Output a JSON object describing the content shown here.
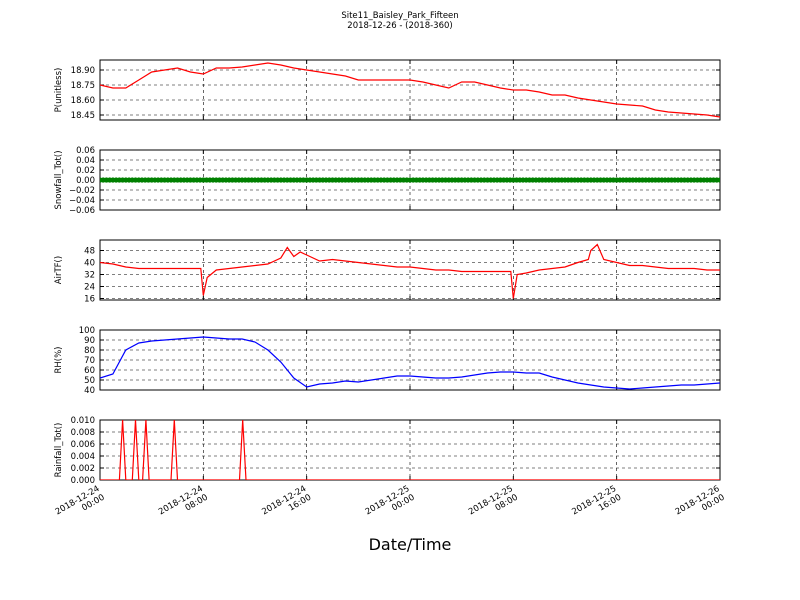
{
  "figure": {
    "title_line1": "Site11_Baisley_Park_Fifteen",
    "title_line2": "2018-12-26 - (2018-360)",
    "xlabel": "Date/Time",
    "x_tick_labels": [
      [
        "2018-12-24",
        "00:00"
      ],
      [
        "2018-12-24",
        "08:00"
      ],
      [
        "2018-12-24",
        "16:00"
      ],
      [
        "2018-12-25",
        "00:00"
      ],
      [
        "2018-12-25",
        "08:00"
      ],
      [
        "2018-12-25",
        "16:00"
      ],
      [
        "2018-12-26",
        "00:00"
      ]
    ]
  },
  "chart_data": [
    {
      "type": "line",
      "ylabel": "P(unitless)",
      "color": "#ff0000",
      "ylim": [
        18.4,
        19.0
      ],
      "yticks": [
        18.45,
        18.6,
        18.75,
        18.9
      ],
      "ytick_labels": [
        "18.45",
        "18.60",
        "18.75",
        "18.90"
      ],
      "x_hours": [
        0,
        1,
        2,
        3,
        4,
        5,
        6,
        7,
        8,
        9,
        10,
        11,
        12,
        13,
        14,
        15,
        16,
        17,
        18,
        19,
        20,
        21,
        22,
        23,
        24,
        25,
        26,
        27,
        28,
        29,
        30,
        31,
        32,
        33,
        34,
        35,
        36,
        37,
        38,
        39,
        40,
        41,
        42,
        43,
        44,
        45,
        46,
        47,
        48
      ],
      "values": [
        18.75,
        18.72,
        18.72,
        18.8,
        18.88,
        18.9,
        18.92,
        18.88,
        18.86,
        18.92,
        18.92,
        18.93,
        18.95,
        18.97,
        18.95,
        18.92,
        18.9,
        18.88,
        18.86,
        18.84,
        18.8,
        18.8,
        18.8,
        18.8,
        18.8,
        18.78,
        18.75,
        18.72,
        18.78,
        18.78,
        18.75,
        18.72,
        18.7,
        18.7,
        18.68,
        18.65,
        18.65,
        18.62,
        18.6,
        18.58,
        18.56,
        18.55,
        18.54,
        18.5,
        18.48,
        18.47,
        18.46,
        18.45,
        18.43
      ]
    },
    {
      "type": "scatter",
      "ylabel": "Snowfall_Tot()",
      "color": "#008000",
      "ylim": [
        -0.06,
        0.06
      ],
      "yticks": [
        -0.06,
        -0.04,
        -0.02,
        0.0,
        0.02,
        0.04,
        0.06
      ],
      "ytick_labels": [
        "−0.06",
        "−0.04",
        "−0.02",
        "0.00",
        "0.02",
        "0.04",
        "0.06"
      ],
      "x_range_hours": [
        0,
        48
      ],
      "constant_value": 0.0
    },
    {
      "type": "line",
      "ylabel": "AirTF()",
      "color": "#ff0000",
      "ylim": [
        15,
        55
      ],
      "yticks": [
        16,
        24,
        32,
        40,
        48
      ],
      "ytick_labels": [
        "16",
        "24",
        "32",
        "40",
        "48"
      ],
      "x_hours": [
        0,
        1,
        2,
        3,
        4,
        5,
        6,
        7,
        7.8,
        8.0,
        8.3,
        9,
        10,
        11,
        12,
        13,
        14,
        14.5,
        15,
        15.5,
        16,
        17,
        18,
        19,
        20,
        21,
        22,
        23,
        24,
        25,
        26,
        27,
        28,
        29,
        30,
        31,
        31.8,
        32.0,
        32.3,
        33,
        34,
        35,
        36,
        37,
        37.8,
        38.0,
        38.5,
        39,
        40,
        41,
        42,
        43,
        44,
        45,
        46,
        47,
        48
      ],
      "values": [
        40,
        39,
        37,
        36,
        36,
        36,
        36,
        36,
        36,
        18,
        30,
        35,
        36,
        37,
        38,
        39,
        43,
        50,
        44,
        47,
        45,
        41,
        42,
        41,
        40,
        39,
        38,
        37,
        37,
        36,
        35,
        35,
        34,
        34,
        34,
        34,
        34,
        16,
        32,
        33,
        35,
        36,
        37,
        40,
        42,
        48,
        52,
        42,
        40,
        38,
        38,
        37,
        36,
        36,
        36,
        35,
        35
      ]
    },
    {
      "type": "line",
      "ylabel": "RH(%)",
      "color": "#0000ff",
      "ylim": [
        40,
        100
      ],
      "yticks": [
        40,
        50,
        60,
        70,
        80,
        90,
        100
      ],
      "ytick_labels": [
        "40",
        "50",
        "60",
        "70",
        "80",
        "90",
        "100"
      ],
      "x_hours": [
        0,
        1,
        2,
        3,
        4,
        5,
        6,
        7,
        8,
        9,
        10,
        11,
        12,
        13,
        14,
        15,
        16,
        17,
        18,
        19,
        20,
        21,
        22,
        23,
        24,
        25,
        26,
        27,
        28,
        29,
        30,
        31,
        32,
        33,
        34,
        35,
        36,
        37,
        38,
        39,
        40,
        41,
        42,
        43,
        44,
        45,
        46,
        47,
        48
      ],
      "values": [
        52,
        56,
        80,
        87,
        89,
        90,
        91,
        92,
        93,
        92,
        91,
        91,
        88,
        80,
        68,
        52,
        43,
        46,
        47,
        49,
        48,
        50,
        52,
        54,
        54,
        53,
        52,
        52,
        53,
        55,
        57,
        58,
        58,
        57,
        57,
        53,
        50,
        47,
        45,
        43,
        42,
        41,
        42,
        43,
        44,
        45,
        45,
        46,
        47
      ]
    },
    {
      "type": "line",
      "ylabel": "Rainfall_Tot()",
      "color": "#ff0000",
      "ylim": [
        0,
        0.01
      ],
      "yticks": [
        0.0,
        0.002,
        0.004,
        0.006,
        0.008,
        0.01
      ],
      "ytick_labels": [
        "0.000",
        "0.002",
        "0.004",
        "0.006",
        "0.008",
        "0.010"
      ],
      "x_hours": [
        0,
        1.5,
        1.75,
        2.0,
        2.5,
        2.75,
        3.0,
        3.3,
        3.55,
        3.8,
        5.5,
        5.75,
        6.0,
        10.8,
        11.05,
        11.3,
        48
      ],
      "values": [
        0,
        0,
        0.01,
        0,
        0,
        0.01,
        0,
        0,
        0.01,
        0,
        0,
        0.01,
        0,
        0,
        0.01,
        0,
        0
      ]
    }
  ]
}
